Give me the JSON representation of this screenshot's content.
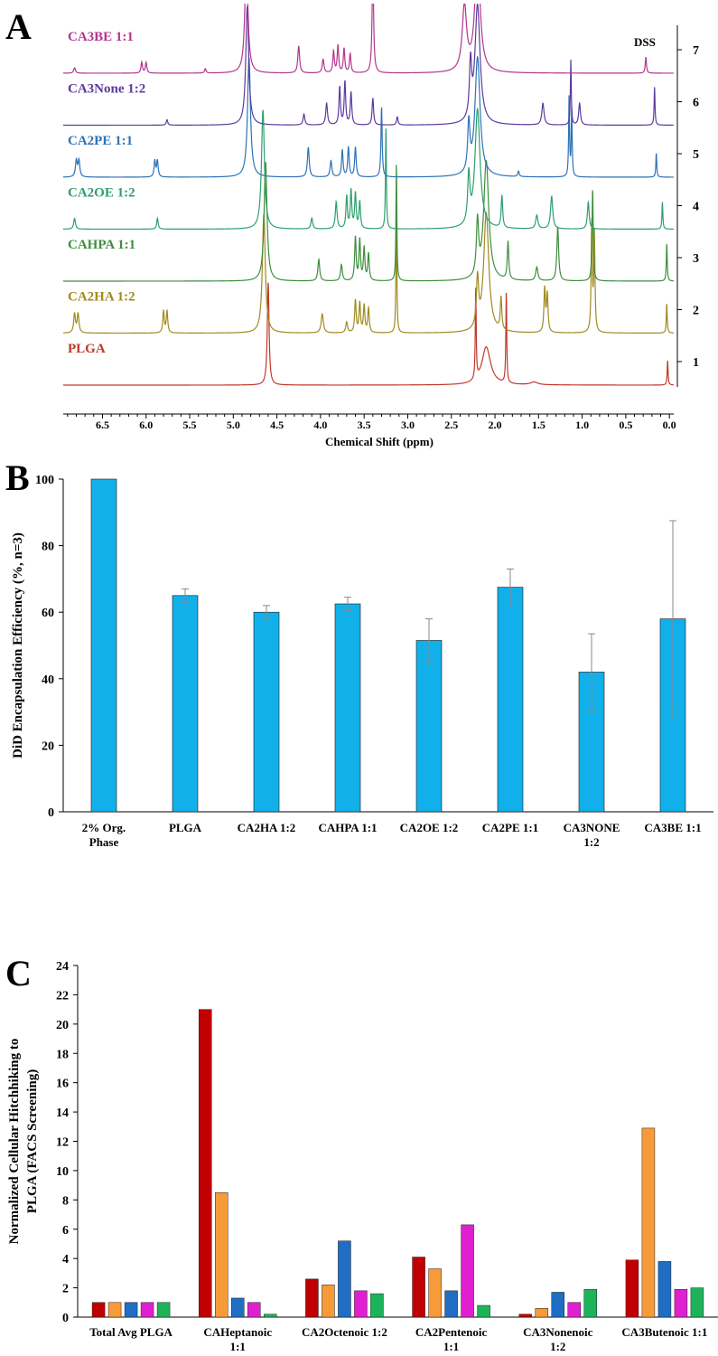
{
  "chart_data": [
    {
      "panel": "A",
      "type": "line",
      "title": "",
      "xlabel": "Chemical Shift (ppm)",
      "xlim": [
        6.95,
        -0.05
      ],
      "x_ticks": [
        "6.5",
        "6.0",
        "5.5",
        "5.0",
        "4.5",
        "4.0",
        "3.5",
        "3.0",
        "2.5",
        "2.0",
        "1.5",
        "1.0",
        "0.5",
        "0.0"
      ],
      "y_ticks": [
        "1",
        "2",
        "3",
        "4",
        "5",
        "6",
        "7"
      ],
      "annotation": "DSS",
      "series": [
        {
          "name": "PLGA",
          "track": 1,
          "color": "#C0392B",
          "peaks": [
            [
              4.6,
              1.9,
              0.012
            ],
            [
              2.22,
              1.7,
              0.006
            ],
            [
              2.1,
              0.7,
              0.06
            ],
            [
              1.87,
              1.7,
              0.006
            ],
            [
              1.55,
              0.05,
              0.05
            ],
            [
              0.02,
              0.45,
              0.006
            ]
          ]
        },
        {
          "name": "CA2HA 1:2",
          "track": 2,
          "color": "#A08A1F",
          "peaks": [
            [
              6.82,
              0.35,
              0.012
            ],
            [
              6.78,
              0.35,
              0.012
            ],
            [
              5.8,
              0.4,
              0.01
            ],
            [
              5.76,
              0.4,
              0.01
            ],
            [
              4.65,
              2.2,
              0.02
            ],
            [
              3.98,
              0.35,
              0.015
            ],
            [
              3.7,
              0.2,
              0.012
            ],
            [
              3.6,
              0.6,
              0.01
            ],
            [
              3.55,
              0.55,
              0.01
            ],
            [
              3.5,
              0.5,
              0.01
            ],
            [
              3.45,
              0.45,
              0.01
            ],
            [
              3.13,
              2.2,
              0.006
            ],
            [
              2.2,
              0.9,
              0.015
            ],
            [
              2.1,
              2.2,
              0.035
            ],
            [
              1.93,
              0.6,
              0.01
            ],
            [
              1.43,
              0.8,
              0.01
            ],
            [
              1.4,
              0.7,
              0.01
            ],
            [
              0.89,
              2.0,
              0.008
            ],
            [
              0.86,
              1.8,
              0.008
            ],
            [
              0.03,
              0.55,
              0.006
            ]
          ]
        },
        {
          "name": "CAHPA 1:1",
          "track": 3,
          "color": "#3E8E3E",
          "peaks": [
            [
              4.63,
              2.2,
              0.02
            ],
            [
              4.02,
              0.4,
              0.012
            ],
            [
              3.76,
              0.3,
              0.012
            ],
            [
              3.6,
              0.8,
              0.01
            ],
            [
              3.55,
              0.75,
              0.01
            ],
            [
              3.5,
              0.6,
              0.01
            ],
            [
              3.45,
              0.5,
              0.01
            ],
            [
              3.13,
              2.2,
              0.006
            ],
            [
              2.2,
              1.0,
              0.015
            ],
            [
              2.1,
              2.2,
              0.035
            ],
            [
              1.85,
              0.7,
              0.01
            ],
            [
              1.52,
              0.25,
              0.015
            ],
            [
              1.28,
              1.0,
              0.012
            ],
            [
              0.88,
              1.7,
              0.008
            ],
            [
              0.03,
              0.7,
              0.006
            ]
          ]
        },
        {
          "name": "CA2OE 1:2",
          "track": 4,
          "color": "#2E9E6E",
          "peaks": [
            [
              6.82,
              0.2,
              0.012
            ],
            [
              5.87,
              0.2,
              0.01
            ],
            [
              4.66,
              2.2,
              0.02
            ],
            [
              4.1,
              0.2,
              0.012
            ],
            [
              3.82,
              0.5,
              0.012
            ],
            [
              3.7,
              0.6,
              0.01
            ],
            [
              3.65,
              0.7,
              0.01
            ],
            [
              3.6,
              0.65,
              0.01
            ],
            [
              3.55,
              0.5,
              0.01
            ],
            [
              3.25,
              1.9,
              0.006
            ],
            [
              2.3,
              0.9,
              0.015
            ],
            [
              2.2,
              2.2,
              0.035
            ],
            [
              1.92,
              0.6,
              0.01
            ],
            [
              1.52,
              0.25,
              0.015
            ],
            [
              1.35,
              0.6,
              0.015
            ],
            [
              0.93,
              0.5,
              0.012
            ],
            [
              0.08,
              0.5,
              0.006
            ]
          ]
        },
        {
          "name": "CA2PE 1:1",
          "track": 5,
          "color": "#2E72B8",
          "peaks": [
            [
              6.8,
              0.3,
              0.012
            ],
            [
              6.77,
              0.3,
              0.012
            ],
            [
              5.9,
              0.3,
              0.01
            ],
            [
              5.87,
              0.3,
              0.01
            ],
            [
              4.82,
              2.2,
              0.02
            ],
            [
              4.14,
              0.55,
              0.012
            ],
            [
              3.88,
              0.3,
              0.012
            ],
            [
              3.75,
              0.5,
              0.01
            ],
            [
              3.68,
              0.55,
              0.01
            ],
            [
              3.6,
              0.55,
              0.01
            ],
            [
              3.3,
              1.3,
              0.008
            ],
            [
              2.3,
              0.9,
              0.015
            ],
            [
              2.2,
              2.2,
              0.035
            ],
            [
              1.73,
              0.1,
              0.01
            ],
            [
              1.15,
              1.5,
              0.006
            ],
            [
              1.12,
              1.3,
              0.006
            ],
            [
              0.15,
              0.45,
              0.006
            ]
          ]
        },
        {
          "name": "CA3None 1:2",
          "track": 6,
          "color": "#5B3A9E",
          "peaks": [
            [
              5.76,
              0.1,
              0.01
            ],
            [
              4.84,
              2.2,
              0.02
            ],
            [
              4.19,
              0.2,
              0.012
            ],
            [
              3.93,
              0.4,
              0.012
            ],
            [
              3.78,
              0.7,
              0.01
            ],
            [
              3.72,
              0.8,
              0.01
            ],
            [
              3.65,
              0.6,
              0.01
            ],
            [
              3.4,
              0.5,
              0.01
            ],
            [
              3.12,
              0.15,
              0.01
            ],
            [
              2.28,
              1.0,
              0.015
            ],
            [
              2.2,
              2.2,
              0.035
            ],
            [
              1.45,
              0.4,
              0.015
            ],
            [
              1.13,
              1.2,
              0.006
            ],
            [
              1.03,
              0.4,
              0.012
            ],
            [
              0.17,
              0.7,
              0.006
            ]
          ]
        },
        {
          "name": "CA3BE 1:1",
          "track": 7,
          "color": "#B3358E",
          "peaks": [
            [
              6.82,
              0.1,
              0.012
            ],
            [
              6.05,
              0.2,
              0.01
            ],
            [
              6.0,
              0.2,
              0.01
            ],
            [
              5.32,
              0.08,
              0.01
            ],
            [
              4.85,
              2.2,
              0.02
            ],
            [
              4.25,
              0.5,
              0.012
            ],
            [
              3.97,
              0.25,
              0.012
            ],
            [
              3.85,
              0.4,
              0.01
            ],
            [
              3.8,
              0.5,
              0.01
            ],
            [
              3.73,
              0.45,
              0.01
            ],
            [
              3.66,
              0.35,
              0.01
            ],
            [
              3.4,
              2.0,
              0.01
            ],
            [
              2.35,
              1.2,
              0.03
            ],
            [
              2.2,
              2.2,
              0.035
            ],
            [
              0.27,
              0.3,
              0.008
            ]
          ]
        }
      ]
    },
    {
      "panel": "B",
      "type": "bar",
      "title": "",
      "xlabel": "",
      "ylabel": "DiD Encapsulation Efficiency (%, n=3)",
      "ylim": [
        0,
        100
      ],
      "y_ticks": [
        "0",
        "20",
        "40",
        "60",
        "80",
        "100"
      ],
      "categories": [
        [
          "2% Org.",
          "Phase"
        ],
        [
          "PLGA"
        ],
        [
          "CA2HA 1:2"
        ],
        [
          "CAHPA 1:1"
        ],
        [
          "CA2OE 1:2"
        ],
        [
          "CA2PE 1:1"
        ],
        [
          "CA3NONE",
          "1:2"
        ],
        [
          "CA3BE 1:1"
        ]
      ],
      "values": [
        100,
        65,
        60,
        62.5,
        51.5,
        67.5,
        42,
        58
      ],
      "errors": [
        0,
        2,
        2,
        2,
        6.5,
        5.5,
        11.5,
        29.5
      ],
      "color": "#12B0EA"
    },
    {
      "panel": "C",
      "type": "bar",
      "title": "",
      "xlabel": "",
      "ylabel": [
        "Normalized Cellular Hitchhiking to",
        "PLGA (FACS Screening)"
      ],
      "ylim": [
        0,
        24
      ],
      "y_ticks": [
        "0",
        "2",
        "4",
        "6",
        "8",
        "10",
        "12",
        "14",
        "16",
        "18",
        "20",
        "22",
        "24"
      ],
      "categories": [
        [
          "Total Avg PLGA"
        ],
        [
          "CAHeptanoic",
          "1:1"
        ],
        [
          "CA2Octenoic 1:2"
        ],
        [
          "CA2Pentenoic",
          "1:1"
        ],
        [
          "CA3Nonenoic",
          "1:2"
        ],
        [
          "CA3Butenoic 1:1"
        ]
      ],
      "series": [
        {
          "name": "",
          "color": "#C00000",
          "values": [
            1,
            21,
            2.6,
            4.1,
            0.2,
            3.9
          ]
        },
        {
          "name": "",
          "color": "#F79B3A",
          "values": [
            1,
            8.5,
            2.2,
            3.3,
            0.6,
            12.9
          ]
        },
        {
          "name": "",
          "color": "#1F6EC4",
          "values": [
            1,
            1.3,
            5.2,
            1.8,
            1.7,
            3.8
          ]
        },
        {
          "name": "",
          "color": "#E020D0",
          "values": [
            1,
            1,
            1.8,
            6.3,
            1,
            1.9
          ]
        },
        {
          "name": "",
          "color": "#1DB35A",
          "values": [
            1,
            0.2,
            1.6,
            0.8,
            1.9,
            2
          ]
        }
      ]
    }
  ]
}
